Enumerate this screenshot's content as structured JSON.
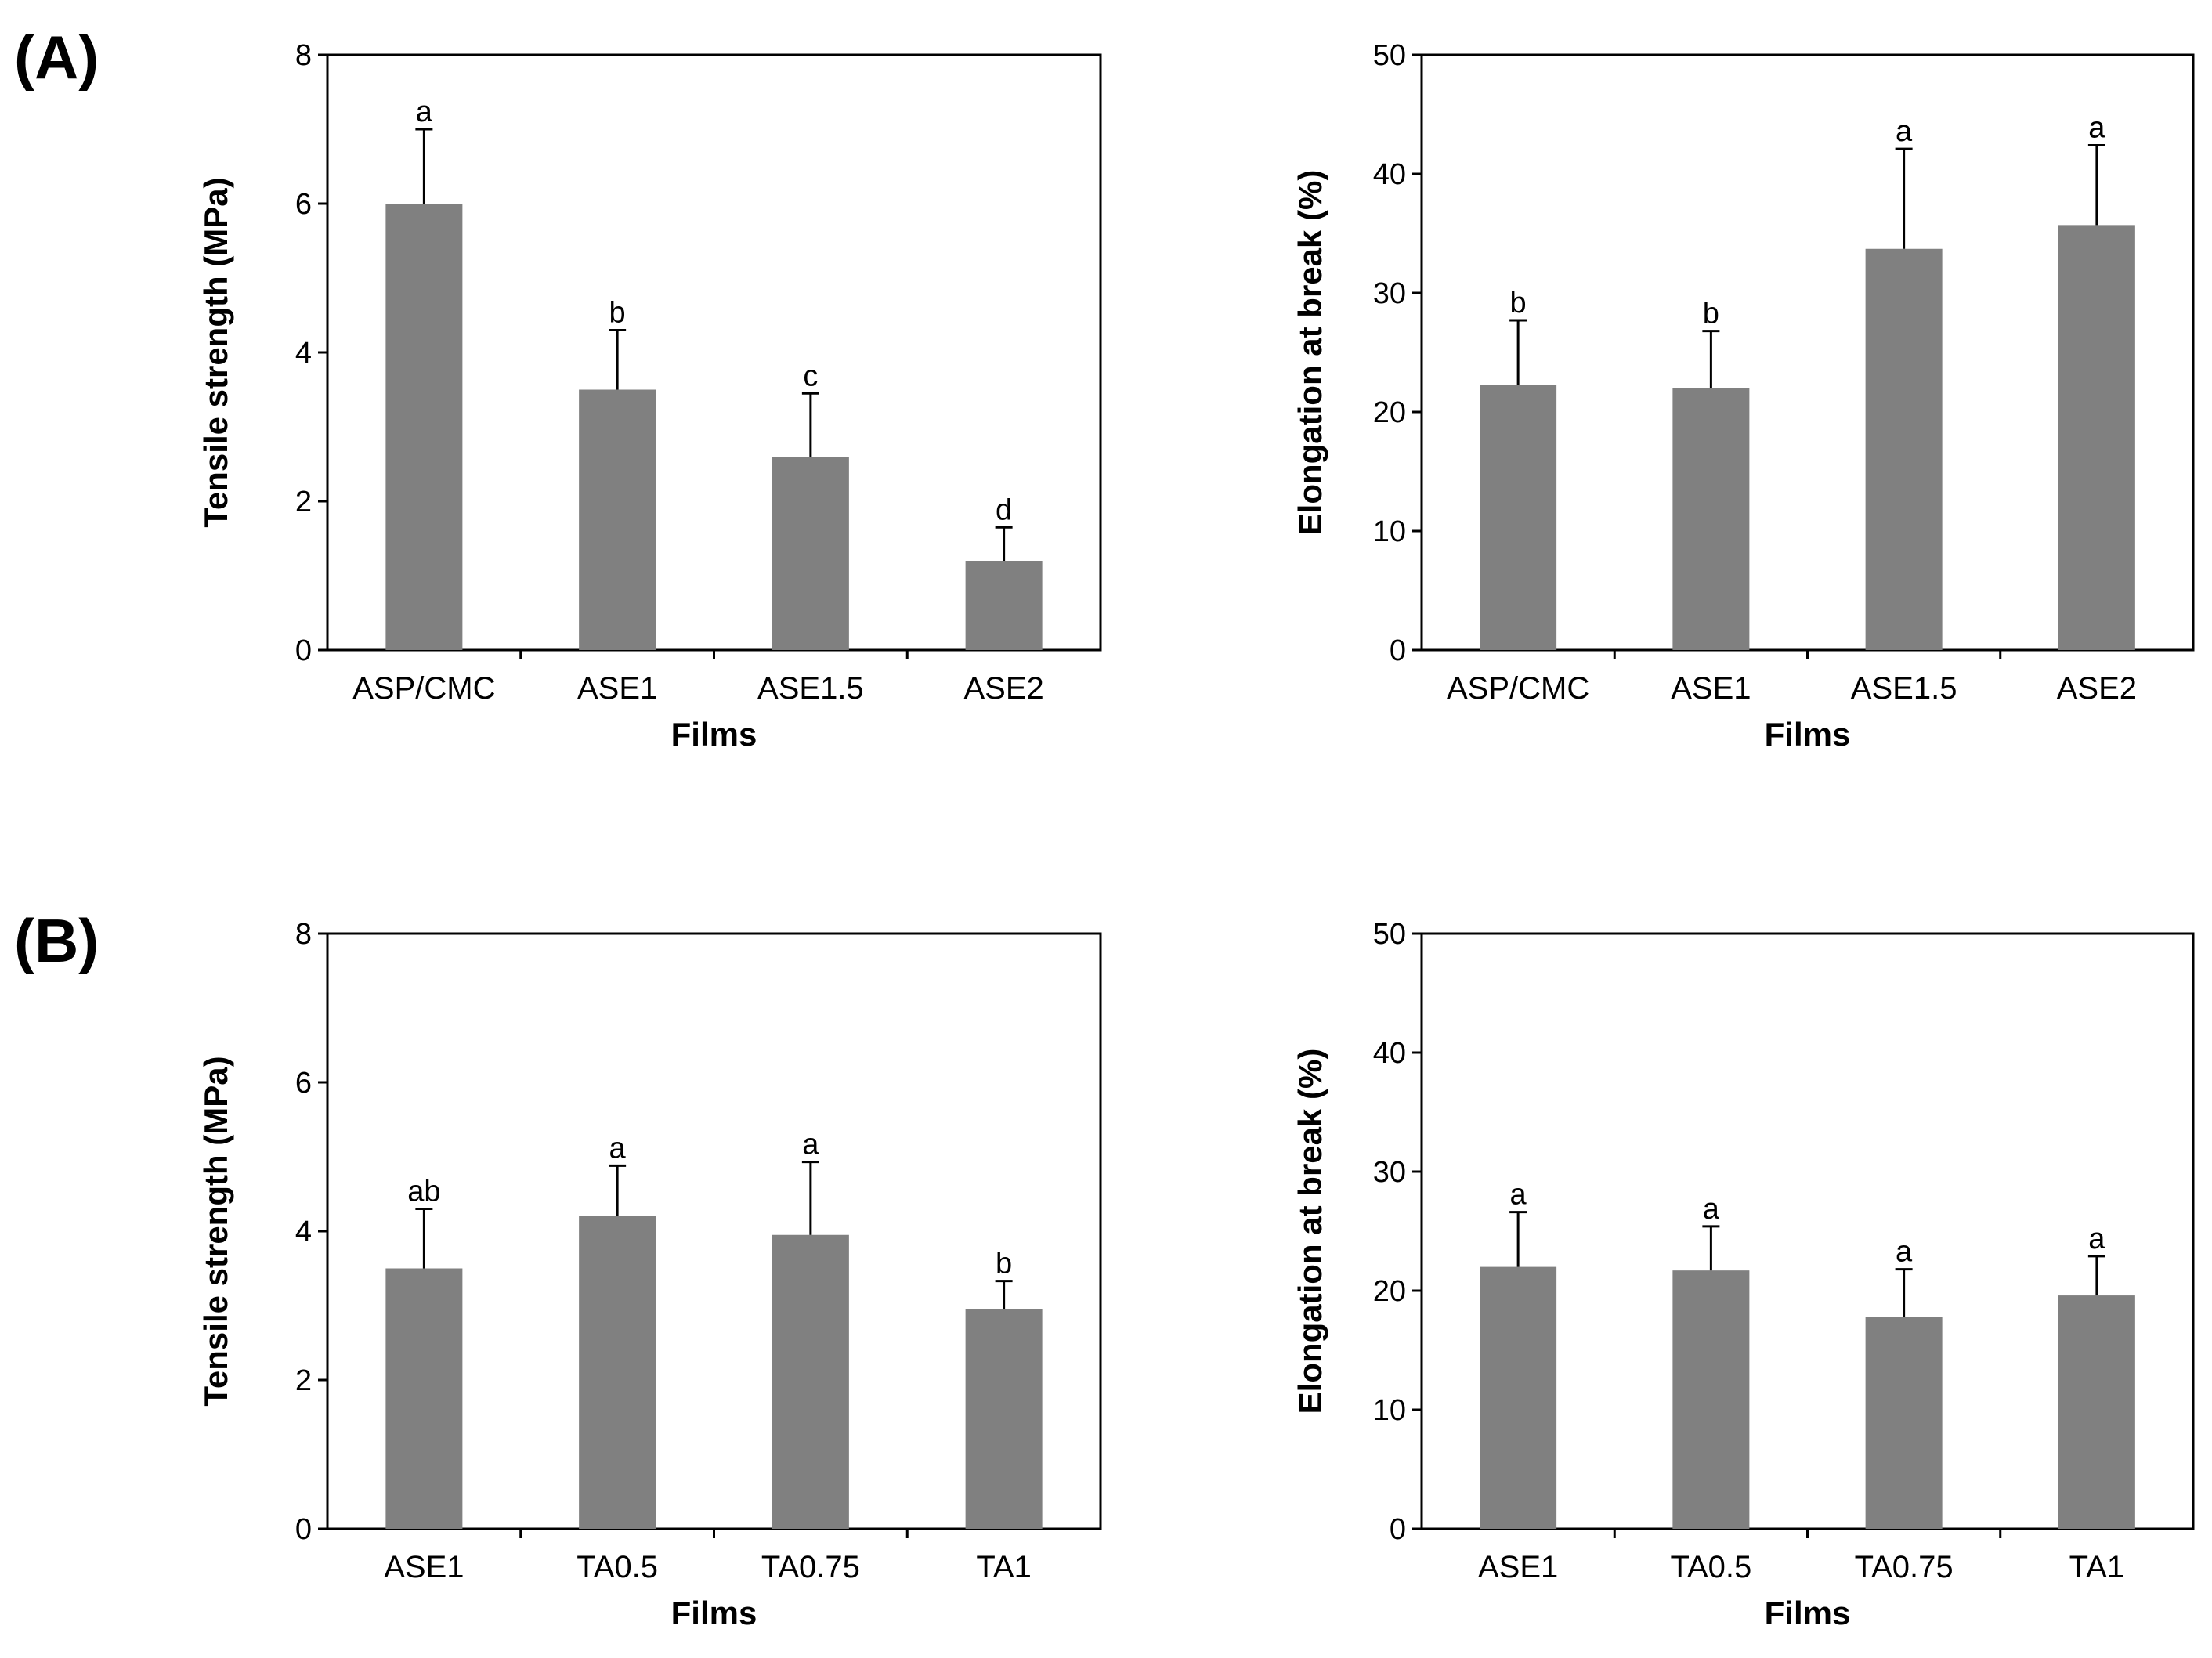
{
  "panels": [
    {
      "label": "(A)"
    },
    {
      "label": "(B)"
    }
  ],
  "colors": {
    "bar": "#808080",
    "frame": "#000000",
    "error_bar": "#000000"
  },
  "chart_data": [
    {
      "type": "bar",
      "panel": "(A)",
      "title": "",
      "xlabel": "Films",
      "ylabel": "Tensile strength (MPa)",
      "categories": [
        "ASP/CMC",
        "ASE1",
        "ASE1.5",
        "ASE2"
      ],
      "values": [
        6.0,
        3.5,
        2.6,
        1.2
      ],
      "errors": [
        1.0,
        0.8,
        0.85,
        0.45
      ],
      "significance": [
        "a",
        "b",
        "c",
        "d"
      ],
      "ylim": [
        0,
        8
      ],
      "yticks": [
        "0",
        "2",
        "4",
        "6",
        "8"
      ],
      "grid": false
    },
    {
      "type": "bar",
      "panel": "(A)",
      "title": "",
      "xlabel": "Films",
      "ylabel": "Elongation at break (%)",
      "categories": [
        "ASP/CMC",
        "ASE1",
        "ASE1.5",
        "ASE2"
      ],
      "values": [
        22.3,
        22.0,
        33.7,
        35.7
      ],
      "errors": [
        5.4,
        4.8,
        8.4,
        6.7
      ],
      "significance": [
        "b",
        "b",
        "a",
        "a"
      ],
      "ylim": [
        0,
        50
      ],
      "yticks": [
        "0",
        "10",
        "20",
        "30",
        "40",
        "50"
      ],
      "grid": false
    },
    {
      "type": "bar",
      "panel": "(B)",
      "title": "",
      "xlabel": "Films",
      "ylabel": "Tensile strength (MPa)",
      "categories": [
        "ASE1",
        "TA0.5",
        "TA0.75",
        "TA1"
      ],
      "values": [
        3.5,
        4.2,
        3.95,
        2.95
      ],
      "errors": [
        0.8,
        0.68,
        0.98,
        0.38
      ],
      "significance": [
        "ab",
        "a",
        "a",
        "b"
      ],
      "ylim": [
        0,
        8
      ],
      "yticks": [
        "0",
        "2",
        "4",
        "6",
        "8"
      ],
      "grid": false
    },
    {
      "type": "bar",
      "panel": "(B)",
      "title": "",
      "xlabel": "Films",
      "ylabel": "Elongation at break (%)",
      "categories": [
        "ASE1",
        "TA0.5",
        "TA0.75",
        "TA1"
      ],
      "values": [
        22.0,
        21.7,
        17.8,
        19.6
      ],
      "errors": [
        4.6,
        3.7,
        4.0,
        3.3
      ],
      "significance": [
        "a",
        "a",
        "a",
        "a"
      ],
      "ylim": [
        0,
        50
      ],
      "yticks": [
        "0",
        "10",
        "20",
        "30",
        "40",
        "50"
      ],
      "grid": false
    }
  ]
}
